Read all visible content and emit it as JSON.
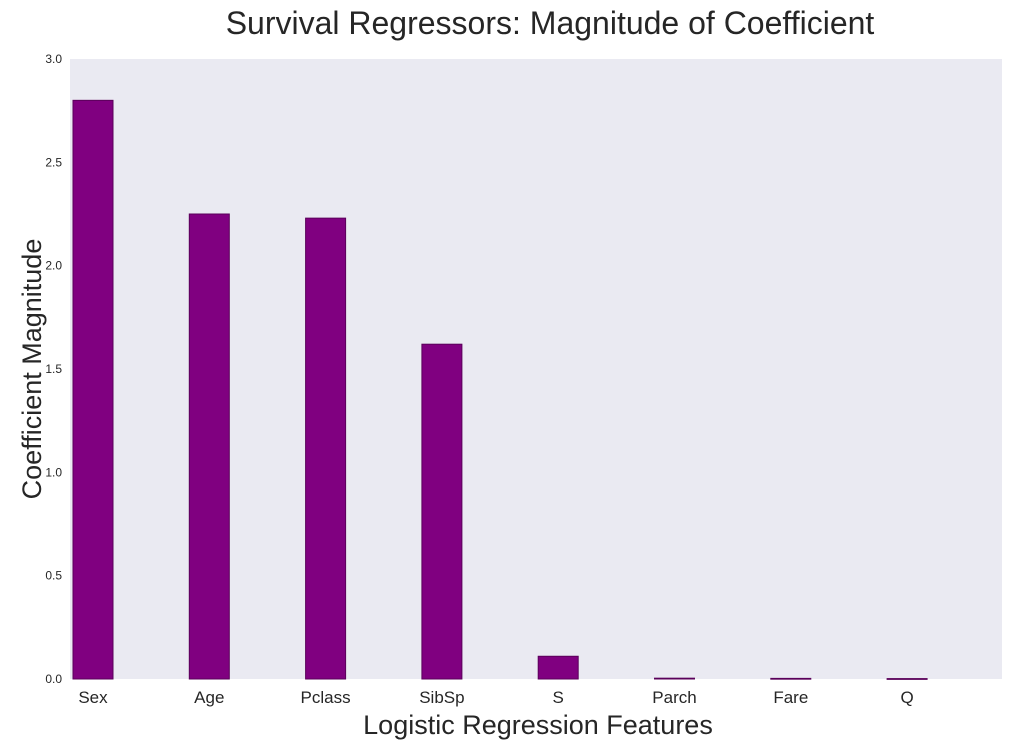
{
  "chart_data": {
    "type": "bar",
    "title": "Survival Regressors: Magnitude of Coefficient",
    "xlabel": "Logistic Regression Features",
    "ylabel": "Coefficient Magnitude",
    "categories": [
      "Sex",
      "Age",
      "Pclass",
      "SibSp",
      "S",
      "Parch",
      "Fare",
      "Q"
    ],
    "values": [
      2.8,
      2.25,
      2.23,
      1.62,
      0.11,
      0.004,
      0.003,
      0.002
    ],
    "ylim": [
      0,
      3.0
    ],
    "yticks": [
      "0.0",
      "0.5",
      "1.0",
      "1.5",
      "2.0",
      "2.5",
      "3.0"
    ],
    "grid": false,
    "colors": {
      "bar": "#800080",
      "bar_edge": "#5a005a",
      "plot_background": "#eaeaf2"
    }
  }
}
